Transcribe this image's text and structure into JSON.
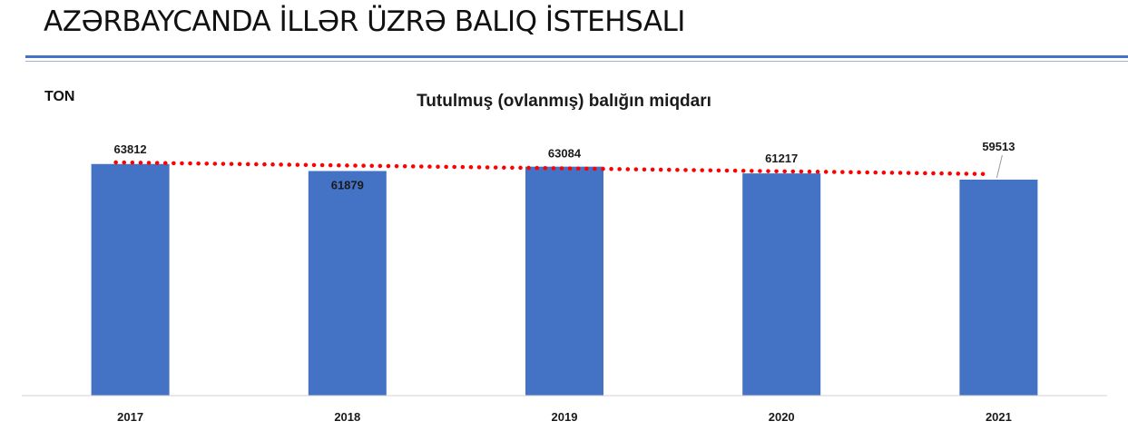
{
  "page": {
    "title": "AZƏRBAYCANDA İLLƏR ÜZRƏ BALIQ İSTEHSALI",
    "accent_color": "#4472C4",
    "thin_rule_color": "#9DB3DD"
  },
  "chart_data": {
    "type": "bar",
    "title": "Tutulmuş (ovlanmış) balığın miqdarı",
    "ylabel": "TON",
    "xlabel": "",
    "categories": [
      "2017",
      "2018",
      "2019",
      "2020",
      "2021"
    ],
    "values": [
      63812,
      61879,
      63084,
      61217,
      59513
    ],
    "ylim": [
      0,
      66000
    ],
    "bar_color": "#4472C4",
    "trendline": {
      "type": "linear",
      "style": "dotted",
      "color": "#FF0000"
    },
    "data_labels": true,
    "grid": false
  }
}
